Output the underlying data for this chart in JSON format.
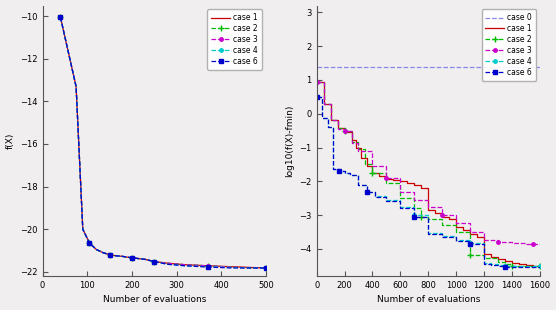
{
  "left": {
    "xlabel": "Number of evaluations",
    "ylabel": "f(X)",
    "xlim": [
      0,
      500
    ],
    "ylim": [
      -22.2,
      -9.5
    ],
    "yticks": [
      -10,
      -12,
      -14,
      -16,
      -18,
      -20,
      -22
    ],
    "xticks": [
      0,
      100,
      200,
      300,
      400,
      500
    ],
    "cases": {
      "case 1": {
        "color": "#cc0000",
        "linestyle": "-",
        "marker": null,
        "markersize": 3,
        "lw": 0.9
      },
      "case 2": {
        "color": "#00bb00",
        "linestyle": "--",
        "marker": "+",
        "markersize": 4,
        "lw": 0.9
      },
      "case 3": {
        "color": "#cc00cc",
        "linestyle": "--",
        "marker": ".",
        "markersize": 5,
        "lw": 0.9
      },
      "case 4": {
        "color": "#00cccc",
        "linestyle": "--",
        "marker": ".",
        "markersize": 5,
        "lw": 0.9
      },
      "case 6": {
        "color": "#0000cc",
        "linestyle": "--",
        "marker": "s",
        "markersize": 2.5,
        "lw": 0.9
      }
    }
  },
  "right": {
    "xlabel": "Number of evaluations",
    "ylabel": "log10(f(X)-fmin)",
    "xlim": [
      0,
      1600
    ],
    "ylim": [
      -4.8,
      3.2
    ],
    "yticks": [
      -4,
      -3,
      -2,
      -1,
      0,
      1,
      2,
      3
    ],
    "xticks": [
      0,
      200,
      400,
      600,
      800,
      1000,
      1200,
      1400,
      1600
    ],
    "cases": {
      "case 0": {
        "color": "#8888ee",
        "linestyle": "--",
        "marker": null,
        "markersize": 3,
        "lw": 0.9
      },
      "case 1": {
        "color": "#cc0000",
        "linestyle": "-",
        "marker": null,
        "markersize": 3,
        "lw": 0.9
      },
      "case 2": {
        "color": "#00bb00",
        "linestyle": "--",
        "marker": "+",
        "markersize": 4,
        "lw": 0.9
      },
      "case 3": {
        "color": "#cc00cc",
        "linestyle": "--",
        "marker": ".",
        "markersize": 5,
        "lw": 0.9
      },
      "case 4": {
        "color": "#00cccc",
        "linestyle": "--",
        "marker": ".",
        "markersize": 5,
        "lw": 0.9
      },
      "case 6": {
        "color": "#0000cc",
        "linestyle": "--",
        "marker": "s",
        "markersize": 2.5,
        "lw": 0.9
      }
    }
  },
  "bg_color": "#f0eeee",
  "left_data": {
    "case 1": {
      "x": [
        40,
        75,
        90,
        105,
        120,
        135,
        150,
        165,
        180,
        200,
        215,
        230,
        250,
        280,
        320,
        370,
        420,
        470,
        500
      ],
      "y": [
        -10.05,
        -13.3,
        -20.0,
        -20.65,
        -20.95,
        -21.1,
        -21.2,
        -21.25,
        -21.28,
        -21.35,
        -21.38,
        -21.42,
        -21.52,
        -21.6,
        -21.67,
        -21.72,
        -21.76,
        -21.8,
        -21.82
      ]
    },
    "case 2": {
      "x": [
        40,
        75,
        90,
        105,
        120,
        135,
        150,
        165,
        180,
        200,
        215,
        230,
        250,
        280,
        320,
        370,
        420,
        470,
        500
      ],
      "y": [
        -10.05,
        -13.3,
        -20.0,
        -20.65,
        -20.95,
        -21.1,
        -21.2,
        -21.25,
        -21.28,
        -21.35,
        -21.38,
        -21.42,
        -21.52,
        -21.6,
        -21.67,
        -21.72,
        -21.78,
        -21.82,
        -21.82
      ]
    },
    "case 3": {
      "x": [
        40,
        75,
        90,
        105,
        120,
        135,
        150,
        165,
        180,
        200,
        215,
        230,
        250,
        280,
        320,
        370,
        420,
        470,
        500
      ],
      "y": [
        -10.05,
        -13.3,
        -20.0,
        -20.65,
        -20.95,
        -21.1,
        -21.2,
        -21.25,
        -21.28,
        -21.35,
        -21.38,
        -21.42,
        -21.52,
        -21.6,
        -21.67,
        -21.72,
        -21.78,
        -21.82,
        -21.82
      ]
    },
    "case 4": {
      "x": [
        40,
        75,
        90,
        105,
        120,
        135,
        150,
        165,
        180,
        200,
        215,
        230,
        250,
        280,
        320,
        370,
        420,
        470,
        500
      ],
      "y": [
        -10.05,
        -13.3,
        -20.0,
        -20.65,
        -20.95,
        -21.1,
        -21.2,
        -21.25,
        -21.28,
        -21.35,
        -21.38,
        -21.42,
        -21.52,
        -21.65,
        -21.72,
        -21.76,
        -21.8,
        -21.82,
        -21.82
      ]
    },
    "case 6": {
      "x": [
        40,
        75,
        90,
        105,
        120,
        135,
        150,
        165,
        180,
        200,
        215,
        230,
        250,
        280,
        320,
        370,
        420,
        470,
        500
      ],
      "y": [
        -10.05,
        -13.3,
        -20.0,
        -20.65,
        -20.95,
        -21.1,
        -21.2,
        -21.25,
        -21.28,
        -21.35,
        -21.38,
        -21.42,
        -21.52,
        -21.65,
        -21.72,
        -21.78,
        -21.82,
        -21.82,
        -21.82
      ]
    }
  },
  "right_data": {
    "case 0": {
      "x": [
        0,
        1600
      ],
      "y": [
        1.38,
        1.38
      ]
    },
    "case 1": {
      "x": [
        0,
        50,
        100,
        150,
        200,
        250,
        280,
        320,
        360,
        400,
        450,
        500,
        550,
        600,
        650,
        700,
        750,
        800,
        850,
        900,
        950,
        1000,
        1050,
        1100,
        1150,
        1200,
        1250,
        1300,
        1350,
        1400,
        1450,
        1500,
        1550,
        1600
      ],
      "y": [
        0.95,
        0.28,
        -0.18,
        -0.42,
        -0.55,
        -0.78,
        -1.0,
        -1.3,
        -1.55,
        -1.75,
        -1.85,
        -1.92,
        -1.95,
        -2.0,
        -2.05,
        -2.1,
        -2.2,
        -2.85,
        -2.95,
        -3.05,
        -3.1,
        -3.35,
        -3.45,
        -3.55,
        -3.65,
        -4.15,
        -4.25,
        -4.3,
        -4.35,
        -4.4,
        -4.45,
        -4.48,
        -4.5,
        -4.5
      ]
    },
    "case 2": {
      "x": [
        0,
        50,
        100,
        150,
        200,
        250,
        300,
        350,
        400,
        500,
        600,
        700,
        750,
        800,
        900,
        1000,
        1100,
        1200,
        1300,
        1350,
        1400,
        1450,
        1500,
        1550,
        1600
      ],
      "y": [
        0.95,
        0.28,
        -0.18,
        -0.42,
        -0.5,
        -0.85,
        -1.05,
        -1.5,
        -1.75,
        -2.05,
        -2.5,
        -2.8,
        -3.05,
        -3.1,
        -3.3,
        -3.5,
        -4.18,
        -4.28,
        -4.38,
        -4.45,
        -4.5,
        -4.5,
        -4.5,
        -4.5,
        -4.5
      ]
    },
    "case 3": {
      "x": [
        0,
        50,
        100,
        150,
        200,
        250,
        300,
        400,
        500,
        600,
        700,
        800,
        900,
        1000,
        1100,
        1200,
        1300,
        1400,
        1450,
        1500,
        1550,
        1600
      ],
      "y": [
        0.95,
        0.28,
        -0.18,
        -0.45,
        -0.5,
        -0.88,
        -1.1,
        -1.55,
        -1.9,
        -2.3,
        -2.55,
        -2.75,
        -3.0,
        -3.22,
        -3.5,
        -3.72,
        -3.78,
        -3.82,
        -3.83,
        -3.84,
        -3.85,
        -3.85
      ]
    },
    "case 4": {
      "x": [
        0,
        40,
        80,
        120,
        160,
        200,
        240,
        300,
        360,
        420,
        500,
        600,
        700,
        800,
        900,
        1000,
        1100,
        1200,
        1250,
        1300,
        1350,
        1400,
        1450,
        1500,
        1600
      ],
      "y": [
        0.5,
        -0.12,
        -0.38,
        -1.62,
        -1.68,
        -1.75,
        -1.82,
        -2.1,
        -2.32,
        -2.42,
        -2.55,
        -2.75,
        -3.0,
        -3.52,
        -3.62,
        -3.72,
        -3.82,
        -4.42,
        -4.45,
        -4.48,
        -4.5,
        -4.5,
        -4.5,
        -4.5,
        -4.5
      ]
    },
    "case 6": {
      "x": [
        0,
        40,
        80,
        120,
        160,
        200,
        240,
        300,
        360,
        420,
        500,
        600,
        700,
        800,
        900,
        1000,
        1100,
        1200,
        1250,
        1300,
        1350,
        1400,
        1500,
        1600
      ],
      "y": [
        0.5,
        -0.12,
        -0.38,
        -1.62,
        -1.68,
        -1.75,
        -1.82,
        -2.12,
        -2.32,
        -2.45,
        -2.58,
        -2.78,
        -3.05,
        -3.55,
        -3.65,
        -3.75,
        -3.85,
        -4.45,
        -4.48,
        -4.5,
        -4.52,
        -4.52,
        -4.52,
        -4.52
      ]
    }
  }
}
